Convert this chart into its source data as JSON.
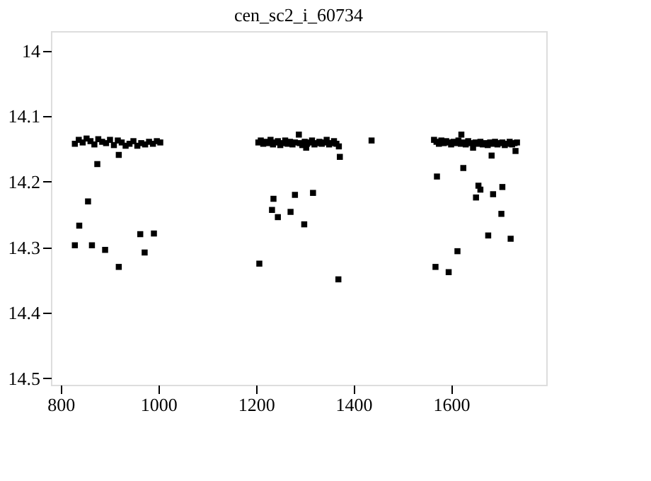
{
  "chart_data": {
    "type": "scatter",
    "title": "cen_sc2_i_60734",
    "marker": "square",
    "grid": false,
    "legend": false,
    "xlim": [
      780,
      1795
    ],
    "xticks": [
      800,
      1000,
      1200,
      1400,
      1600
    ],
    "ylim": [
      14.51,
      13.97
    ],
    "yticks": [
      14,
      14.1,
      14.2,
      14.3,
      14.4,
      14.5
    ],
    "series": [
      {
        "color": "#000000",
        "x": [
          829,
          837,
          845,
          853,
          861,
          869,
          877,
          885,
          893,
          901,
          909,
          917,
          925,
          933,
          941,
          949,
          957,
          965,
          973,
          981,
          989,
          997,
          1004,
          875,
          919,
          856,
          838,
          829,
          864,
          891,
          919,
          963,
          991,
          972,
          1205,
          1210,
          1215,
          1220,
          1225,
          1230,
          1235,
          1240,
          1245,
          1250,
          1255,
          1260,
          1265,
          1270,
          1275,
          1280,
          1288,
          1290,
          1295,
          1303,
          1300,
          1305,
          1310,
          1315,
          1320,
          1325,
          1330,
          1335,
          1340,
          1345,
          1350,
          1355,
          1360,
          1365,
          1370,
          1437,
          1372,
          1207,
          1369,
          1236,
          1280,
          1317,
          1233,
          1245,
          1271,
          1299,
          1565,
          1570,
          1575,
          1580,
          1585,
          1590,
          1595,
          1600,
          1605,
          1610,
          1615,
          1621,
          1620,
          1625,
          1630,
          1635,
          1640,
          1645,
          1650,
          1655,
          1660,
          1665,
          1670,
          1675,
          1680,
          1685,
          1690,
          1695,
          1700,
          1705,
          1710,
          1715,
          1720,
          1725,
          1730,
          1735,
          1683,
          1732,
          1571,
          1625,
          1656,
          1660,
          1651,
          1686,
          1705,
          1703,
          1676,
          1722,
          1613,
          1568,
          1595
        ],
        "values": [
          14.142,
          14.136,
          14.14,
          14.134,
          14.138,
          14.143,
          14.135,
          14.139,
          14.141,
          14.136,
          14.144,
          14.137,
          14.14,
          14.145,
          14.142,
          14.138,
          14.145,
          14.141,
          14.143,
          14.139,
          14.142,
          14.138,
          14.14,
          14.173,
          14.159,
          14.23,
          14.267,
          14.297,
          14.297,
          14.304,
          14.33,
          14.28,
          14.279,
          14.308,
          14.14,
          14.137,
          14.142,
          14.139,
          14.141,
          14.136,
          14.143,
          14.14,
          14.138,
          14.144,
          14.141,
          14.137,
          14.142,
          14.139,
          14.143,
          14.14,
          14.128,
          14.141,
          14.144,
          14.148,
          14.139,
          14.142,
          14.14,
          14.137,
          14.143,
          14.141,
          14.139,
          14.142,
          14.14,
          14.136,
          14.143,
          14.141,
          14.138,
          14.142,
          14.146,
          14.137,
          14.162,
          14.325,
          14.349,
          14.226,
          14.22,
          14.217,
          14.243,
          14.254,
          14.246,
          14.265,
          14.136,
          14.139,
          14.142,
          14.137,
          14.141,
          14.138,
          14.14,
          14.143,
          14.139,
          14.141,
          14.137,
          14.128,
          14.142,
          14.14,
          14.143,
          14.138,
          14.141,
          14.148,
          14.14,
          14.142,
          14.139,
          14.143,
          14.141,
          14.144,
          14.14,
          14.142,
          14.139,
          14.143,
          14.141,
          14.14,
          14.144,
          14.142,
          14.139,
          14.143,
          14.141,
          14.14,
          14.16,
          14.153,
          14.192,
          14.179,
          14.206,
          14.212,
          14.224,
          14.219,
          14.208,
          14.249,
          14.282,
          14.287,
          14.306,
          14.33,
          14.338
        ]
      }
    ]
  }
}
